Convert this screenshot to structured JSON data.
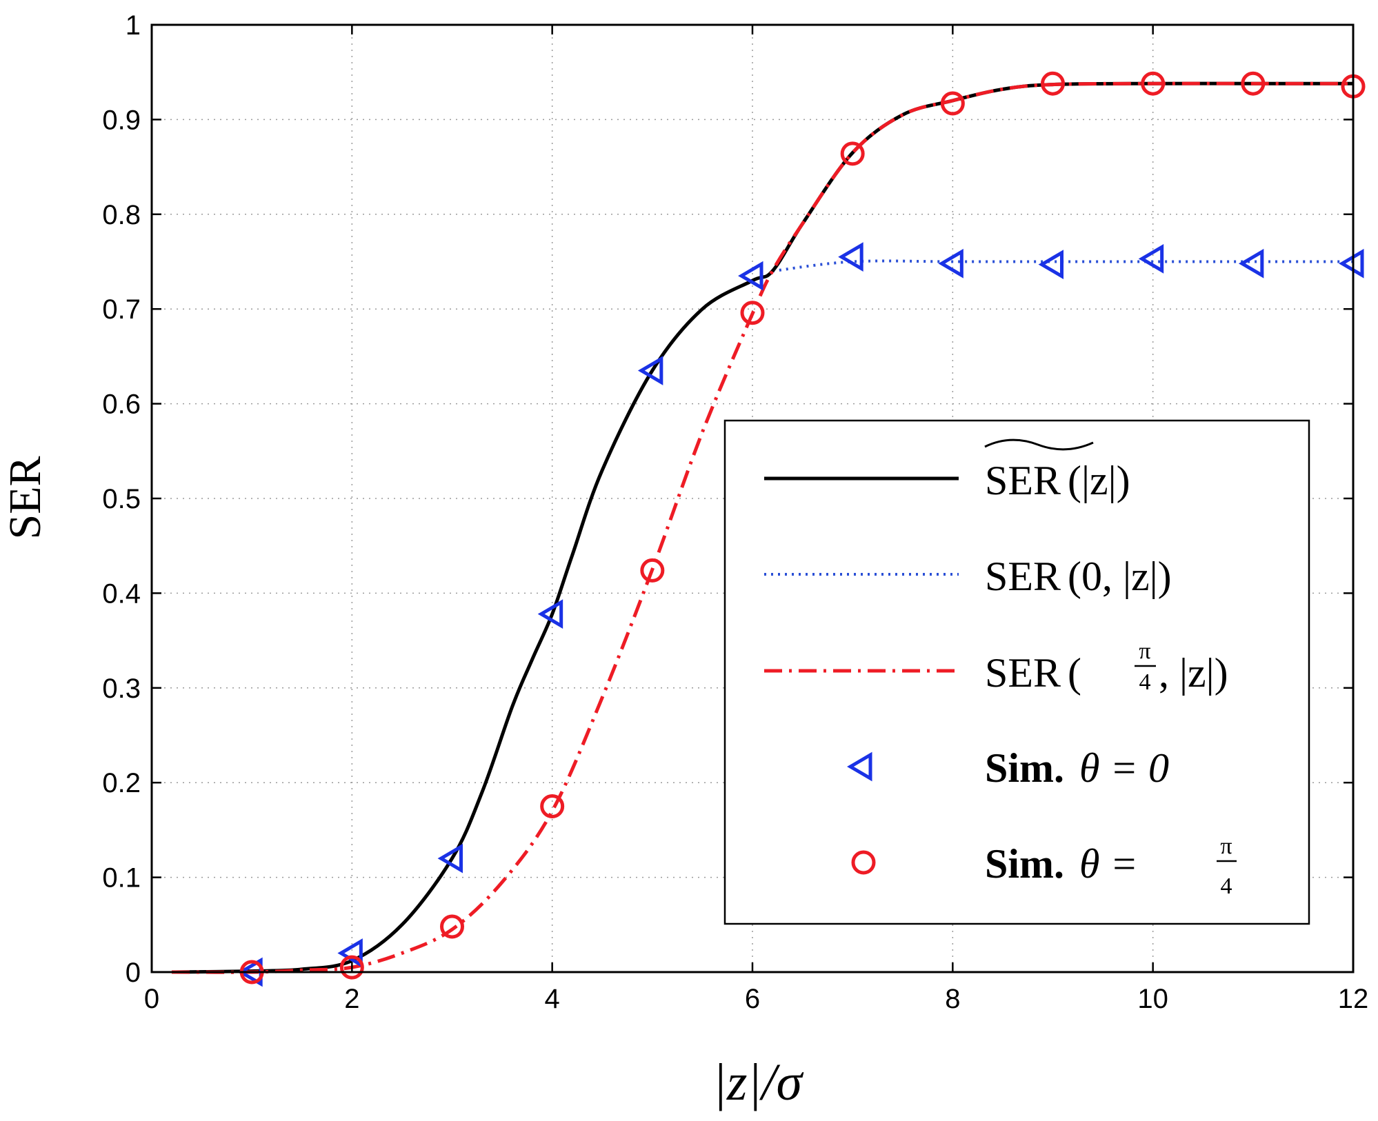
{
  "chart_data": {
    "type": "line",
    "title": "",
    "xlabel": "|z|/σ",
    "ylabel": "SER",
    "xlim": [
      0,
      12
    ],
    "ylim": [
      0,
      1
    ],
    "grid": true,
    "legend_position": "right",
    "x_ticks": [
      "0",
      "2",
      "4",
      "6",
      "8",
      "10",
      "12"
    ],
    "y_ticks": [
      "0",
      "0.1",
      "0.2",
      "0.3",
      "0.4",
      "0.5",
      "0.6",
      "0.7",
      "0.8",
      "0.9",
      "1"
    ],
    "series": [
      {
        "name": "SER~(|z|)",
        "style": "solid",
        "color": "#000000",
        "x": [
          0.2,
          1,
          1.5,
          2,
          2.5,
          3,
          3.3,
          3.6,
          3.8,
          4,
          4.2,
          4.5,
          5,
          5.5,
          6,
          6.2,
          6.5,
          7,
          7.5,
          8,
          8.5,
          9,
          10,
          11,
          12
        ],
        "y": [
          0,
          0.001,
          0.003,
          0.012,
          0.05,
          0.12,
          0.19,
          0.28,
          0.33,
          0.378,
          0.44,
          0.53,
          0.635,
          0.7,
          0.73,
          0.74,
          0.79,
          0.865,
          0.905,
          0.92,
          0.932,
          0.937,
          0.938,
          0.938,
          0.938
        ]
      },
      {
        "name": "SER(0,|z|)",
        "style": "dotted",
        "color": "#2a4fd6",
        "x": [
          6.2,
          7,
          8,
          9,
          10,
          11,
          12
        ],
        "y": [
          0.74,
          0.75,
          0.75,
          0.75,
          0.75,
          0.75,
          0.75
        ]
      },
      {
        "name": "SER(π/4,|z|)",
        "style": "dashdot",
        "color": "#ee1c25",
        "x": [
          0.2,
          1,
          1.5,
          2,
          2.5,
          3,
          3.5,
          4,
          4.5,
          5,
          5.5,
          6,
          6.2,
          6.5,
          7,
          7.5,
          8,
          8.5,
          9,
          10,
          11,
          12
        ],
        "y": [
          0,
          0,
          0.002,
          0.005,
          0.02,
          0.045,
          0.095,
          0.17,
          0.29,
          0.425,
          0.57,
          0.695,
          0.74,
          0.79,
          0.865,
          0.905,
          0.92,
          0.932,
          0.937,
          0.938,
          0.938,
          0.938
        ]
      },
      {
        "name": "Sim. θ=0",
        "style": "markers",
        "marker": "triangle-left",
        "color": "#1a32e6",
        "x": [
          1,
          2,
          3,
          4,
          5,
          6,
          7,
          8,
          9,
          10,
          11,
          12
        ],
        "y": [
          0.0,
          0.02,
          0.12,
          0.378,
          0.635,
          0.735,
          0.755,
          0.748,
          0.747,
          0.753,
          0.748,
          0.748
        ]
      },
      {
        "name": "Sim. θ=π/4",
        "style": "markers",
        "marker": "circle",
        "color": "#ee1c25",
        "x": [
          1,
          2,
          3,
          4,
          5,
          6,
          7,
          8,
          9,
          10,
          11,
          12
        ],
        "y": [
          0.0,
          0.005,
          0.048,
          0.175,
          0.424,
          0.696,
          0.864,
          0.917,
          0.938,
          0.938,
          0.938,
          0.935
        ]
      }
    ],
    "legend": {
      "entries": [
        {
          "base": "SER",
          "arg": "(|z|)",
          "tilde": true
        },
        {
          "base": "SER",
          "arg": "(0, |z|)"
        },
        {
          "base": "SER",
          "arg_open": "(",
          "frac_num": "π",
          "frac_den": "4",
          "arg_rest": ", |z|)"
        },
        {
          "bold": "Sim.",
          "math": "θ = 0"
        },
        {
          "bold": "Sim.",
          "math": "θ = ",
          "frac_num": "π",
          "frac_den": "4"
        }
      ]
    }
  },
  "colors": {
    "black": "#000000",
    "blue": "#1a32e6",
    "blue_dotted": "#2a4fd6",
    "red": "#ee1c25",
    "grid": "#9a9a9a"
  }
}
